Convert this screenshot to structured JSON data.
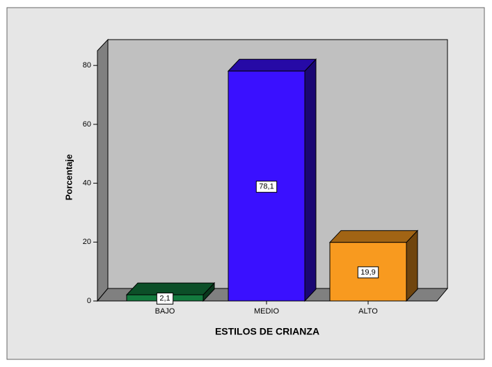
{
  "chart_data": {
    "type": "bar3d",
    "categories": [
      "BAJO",
      "MEDIO",
      "ALTO"
    ],
    "values": [
      2.1,
      78.1,
      19.9
    ],
    "value_labels": [
      "2,1",
      "78,1",
      "19,9"
    ],
    "colors": [
      "#137a3e",
      "#3a10ff",
      "#f89a1f"
    ],
    "x_label": "ESTILOS DE CRIANZA",
    "y_label": "Porcentaje",
    "ylim": [
      0,
      85
    ],
    "yticks": [
      0,
      20,
      40,
      60,
      80
    ]
  }
}
